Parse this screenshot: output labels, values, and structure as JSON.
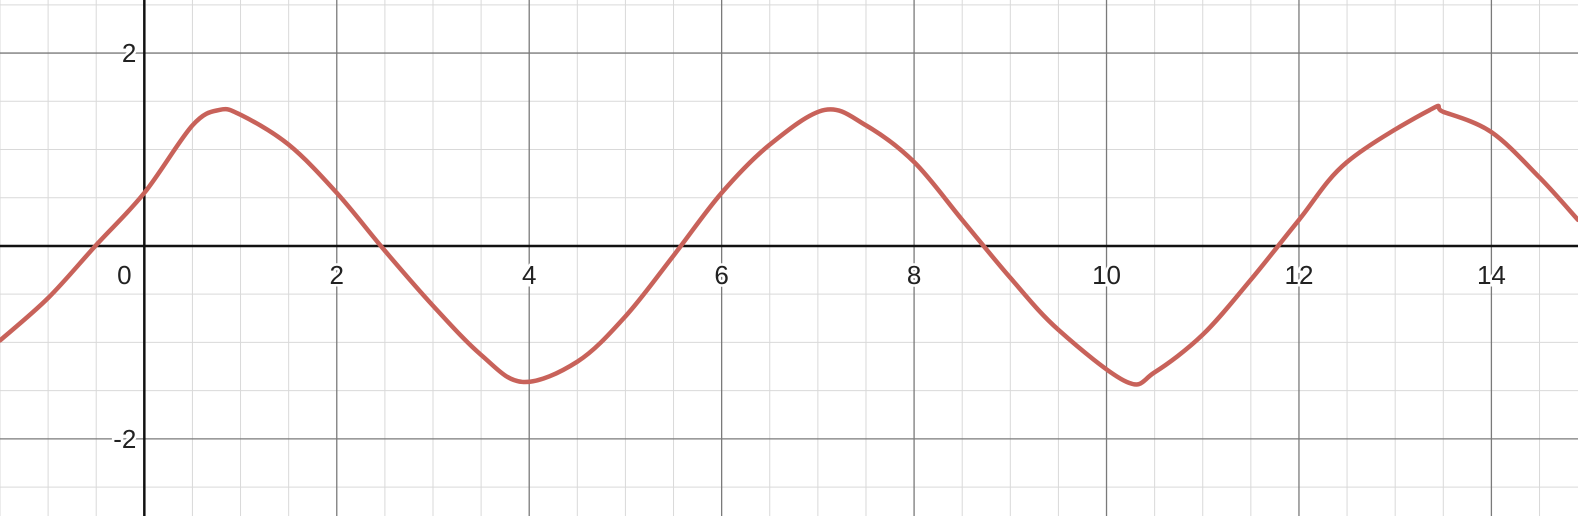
{
  "chart_data": {
    "type": "line",
    "xlim": [
      -1.5,
      14.9
    ],
    "ylim": [
      -2.8,
      2.55
    ],
    "grid": true,
    "grid_major_step": 2,
    "grid_minor_step": 0.5,
    "x_ticks": [
      0,
      2,
      4,
      6,
      8,
      10,
      12,
      14
    ],
    "x_tick_labels": [
      "0",
      "2",
      "4",
      "6",
      "8",
      "10",
      "12",
      "14"
    ],
    "y_ticks": [
      2,
      -2
    ],
    "y_tick_labels": [
      "2",
      "-2"
    ],
    "series": [
      {
        "color": "#c8625a",
        "x": [
          -1.5,
          -1.0,
          -0.5,
          0.0,
          0.5,
          0.78,
          1.0,
          1.5,
          2.0,
          2.5,
          3.0,
          3.5,
          3.93,
          4.5,
          5.0,
          5.5,
          6.0,
          6.5,
          7.07,
          7.5,
          8.0,
          8.5,
          9.0,
          9.5,
          10.21,
          10.5,
          11.0,
          11.5,
          12.0,
          12.5,
          13.36,
          13.5,
          14.0,
          14.5,
          14.9
        ],
        "y": [
          -0.98,
          -0.54,
          0.01,
          0.55,
          1.25,
          1.41,
          1.36,
          1.05,
          0.55,
          -0.05,
          -0.62,
          -1.13,
          -1.41,
          -1.2,
          -0.73,
          -0.1,
          0.55,
          1.05,
          1.41,
          1.25,
          0.87,
          0.27,
          -0.33,
          -0.87,
          -1.41,
          -1.31,
          -0.92,
          -0.35,
          0.27,
          0.87,
          1.41,
          1.39,
          1.18,
          0.71,
          0.27
        ]
      }
    ]
  }
}
